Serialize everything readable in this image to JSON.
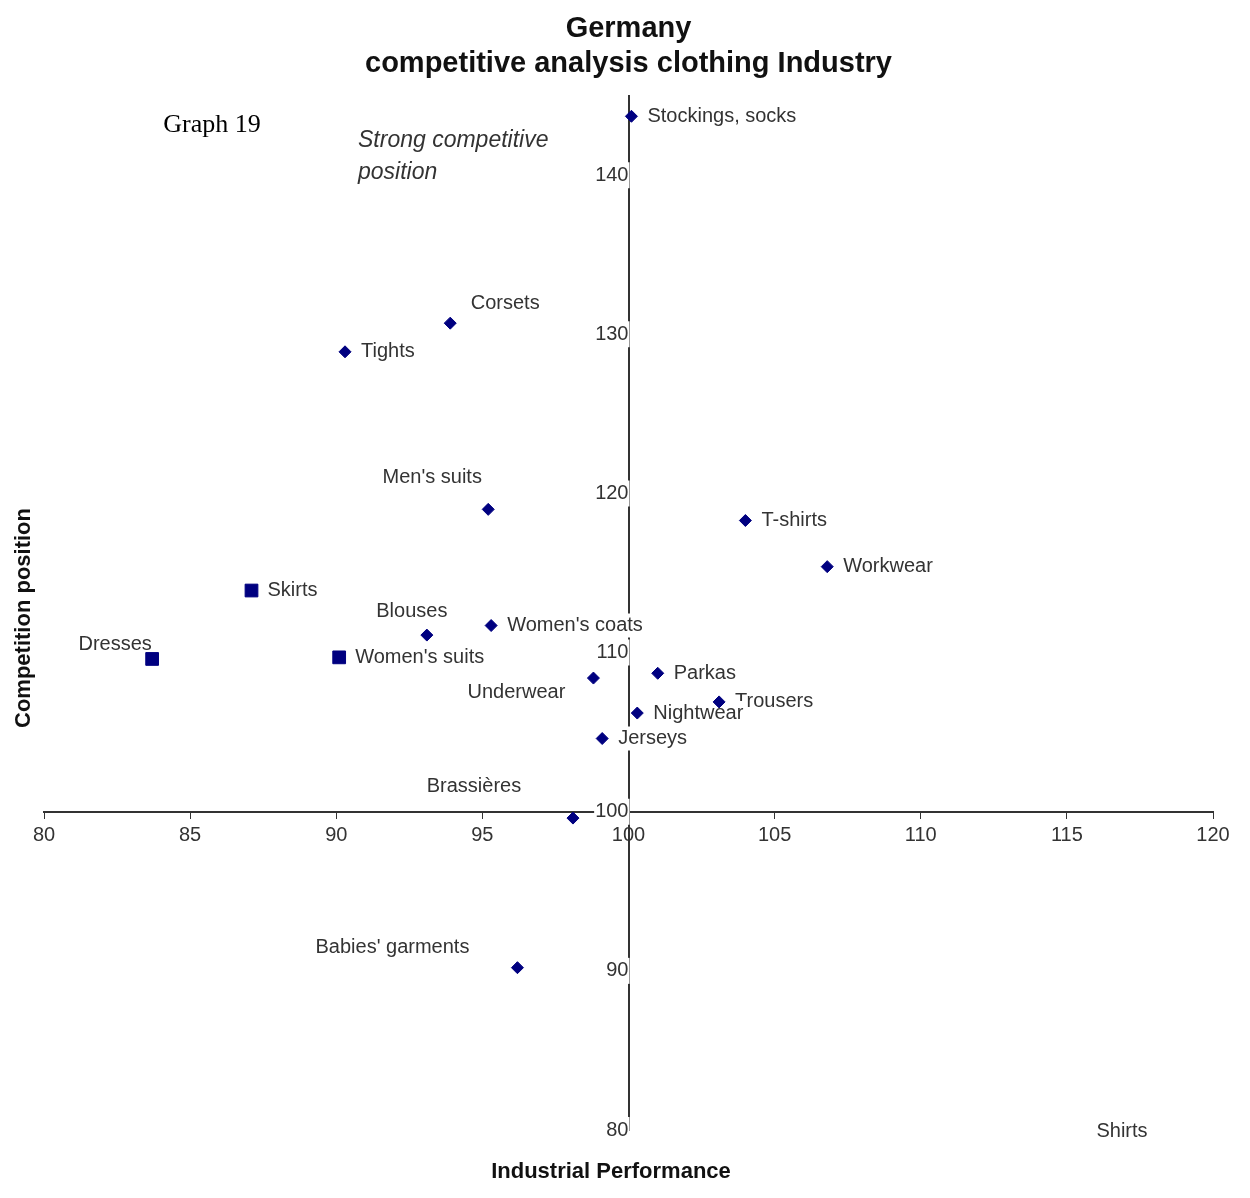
{
  "chart_data": {
    "type": "scatter",
    "title": "Germany\ncompetitive analysis clothing Industry",
    "xlabel": "Industrial Performance",
    "ylabel": "Competition position",
    "xlim": [
      80,
      120
    ],
    "xticks": [
      80,
      85,
      90,
      95,
      100,
      105,
      110,
      115,
      120
    ],
    "ylim": [
      80,
      145
    ],
    "yticks": [
      80,
      90,
      100,
      110,
      120,
      130,
      140
    ],
    "grid": false,
    "legend": false,
    "series": [
      {
        "color": "#000080",
        "marker": "diamond",
        "x": [
          100.1,
          93.9,
          90.3,
          95.2,
          104.0,
          106.8,
          93.1,
          95.3,
          98.8,
          101.0,
          103.1,
          100.3,
          99.1,
          98.1,
          96.2
        ],
        "values": [
          143.7,
          130.7,
          128.9,
          119.0,
          118.3,
          115.4,
          111.1,
          111.7,
          108.4,
          108.7,
          106.9,
          106.2,
          104.6,
          99.6,
          90.2
        ]
      },
      {
        "color": "#000080",
        "marker": "square",
        "x": [
          87.1,
          83.7,
          90.1
        ],
        "values": [
          113.9,
          109.6,
          109.7
        ]
      }
    ],
    "annotations": [
      "Graph 19",
      "Strong competitive position",
      "Shirts",
      {
        "text": "Stockings, socks",
        "x": 100.1,
        "y": 143.7
      },
      {
        "text": "Corsets",
        "x": 93.9,
        "y": 130.7
      },
      {
        "text": "Tights",
        "x": 90.3,
        "y": 128.9
      },
      {
        "text": "Men's suits",
        "x": 95.2,
        "y": 119.0
      },
      {
        "text": "T-shirts",
        "x": 104.0,
        "y": 118.3
      },
      {
        "text": "Workwear",
        "x": 106.8,
        "y": 115.4
      },
      {
        "text": "Blouses",
        "x": 93.1,
        "y": 111.1
      },
      {
        "text": "Women's coats",
        "x": 95.3,
        "y": 111.7
      },
      {
        "text": "Underwear",
        "x": 98.8,
        "y": 108.4
      },
      {
        "text": "Parkas",
        "x": 101.0,
        "y": 108.7
      },
      {
        "text": "Trousers",
        "x": 103.1,
        "y": 106.9
      },
      {
        "text": "Nightwear",
        "x": 100.3,
        "y": 106.2
      },
      {
        "text": "Jerseys",
        "x": 99.1,
        "y": 104.6
      },
      {
        "text": "Brassières",
        "x": 98.1,
        "y": 99.6
      },
      {
        "text": "Babies' garments",
        "x": 96.2,
        "y": 90.2
      },
      {
        "text": "Skirts",
        "x": 87.1,
        "y": 113.9
      },
      {
        "text": "Dresses",
        "x": 83.7,
        "y": 109.6
      },
      {
        "text": "Women's suits",
        "x": 90.1,
        "y": 109.7
      }
    ]
  }
}
